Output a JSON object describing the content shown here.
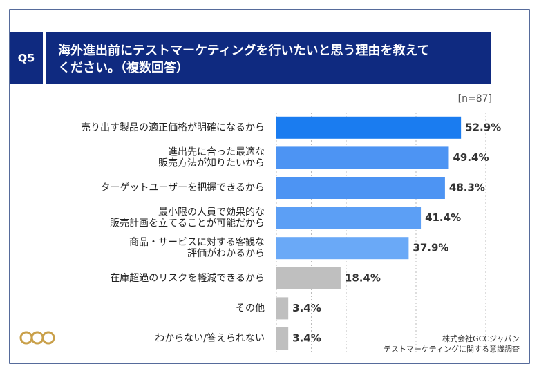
{
  "header": {
    "label": "Q5",
    "title": [
      "海外進出前にテストマーケティングを行いたいと思う理由を教えて",
      "ください。（複数回答）"
    ]
  },
  "chart_data": {
    "type": "hbar",
    "n_label": "[n=87]",
    "categories": [
      [
        "売り出す製品の適正価格が明確になるから"
      ],
      [
        "進出先に合った最適な",
        "販売方法が知りたいから"
      ],
      [
        "ターゲットユーザーを把握できるから"
      ],
      [
        "最小限の人員で効果的な",
        "販売計画を立てることが可能だから"
      ],
      [
        "商品・サービスに対する客観な",
        "評価がわかるから"
      ],
      [
        "在庫超過のリスクを軽減できるから"
      ],
      [
        "その他"
      ],
      [
        "わからない/答えられない"
      ]
    ],
    "values": [
      52.9,
      49.4,
      48.3,
      41.4,
      37.9,
      18.4,
      3.4,
      3.4
    ],
    "value_labels": [
      "52.9%",
      "49.4%",
      "48.3%",
      "41.4%",
      "37.9%",
      "18.4%",
      "3.4%",
      "3.4%"
    ],
    "colors": [
      "#1a7cf0",
      "#4d94f3",
      "#4d94f3",
      "#5c9ff5",
      "#6aa9f7",
      "#bfbfbf",
      "#bfbfbf",
      "#bfbfbf"
    ],
    "xlim": [
      0,
      60
    ],
    "xticks": [
      0,
      10,
      20,
      30,
      40,
      50,
      60
    ],
    "grid": true
  },
  "source": [
    "株式会社GCCジャパン",
    "テストマーケティングに関する意識調査"
  ]
}
